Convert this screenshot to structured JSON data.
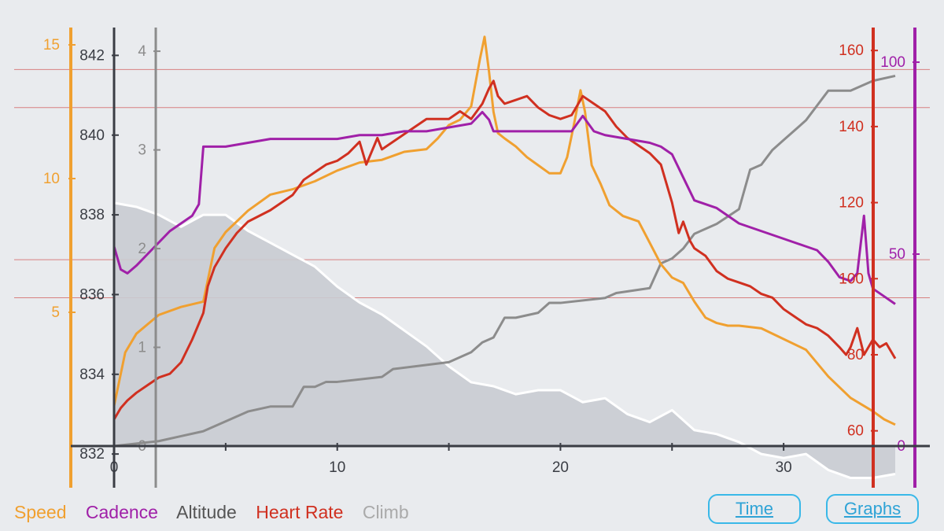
{
  "legend": {
    "speed": "Speed",
    "cadence": "Cadence",
    "altitude": "Altitude",
    "heart_rate": "Heart Rate",
    "climb": "Climb"
  },
  "buttons": {
    "time": "Time",
    "graphs": "Graphs"
  },
  "colors": {
    "speed": "#f0a030",
    "cadence": "#a020a8",
    "altitude": "#ffffff",
    "heart_rate": "#d03020",
    "climb": "#8c8c8c",
    "axis_dark": "#3a3d44",
    "button": "#39b8e8",
    "legend_altitude": "#555555",
    "legend_climb": "#aaaaaa"
  },
  "chart_data": {
    "type": "line",
    "title": "",
    "xlabel": "",
    "x_range": [
      0,
      35
    ],
    "x_ticks": [
      0,
      10,
      20,
      30
    ],
    "x_minor_ticks": [
      5,
      15,
      25
    ],
    "zones": [
      95,
      105,
      145,
      155
    ],
    "axes": {
      "speed": {
        "range": [
          0,
          15.5
        ],
        "ticks": [
          5,
          10,
          15
        ]
      },
      "altitude": {
        "range": [
          832.2,
          842.6
        ],
        "ticks": [
          832,
          834,
          836,
          838,
          840,
          842
        ]
      },
      "climb": {
        "range": [
          0,
          4.2
        ],
        "ticks": [
          0,
          1,
          2,
          3,
          4
        ]
      },
      "heart_rate": {
        "range": [
          56,
          165
        ],
        "ticks": [
          60,
          80,
          100,
          120,
          140,
          160
        ]
      },
      "cadence": {
        "range": [
          0,
          108
        ],
        "ticks": [
          0,
          50,
          100
        ]
      }
    },
    "series": [
      {
        "name": "Altitude",
        "axis": "altitude",
        "x": [
          0,
          1,
          2,
          3,
          4,
          5,
          6,
          7,
          8,
          9,
          10,
          11,
          12,
          13,
          14,
          15,
          16,
          17,
          18,
          19,
          20,
          21,
          22,
          23,
          24,
          25,
          26,
          27,
          28,
          29,
          30,
          31,
          32,
          33,
          34,
          35
        ],
        "values": [
          838.3,
          838.2,
          838.0,
          837.7,
          838.0,
          838.0,
          837.6,
          837.3,
          837.0,
          836.7,
          836.2,
          835.8,
          835.5,
          835.1,
          834.7,
          834.2,
          833.8,
          833.7,
          833.5,
          833.6,
          833.6,
          833.3,
          833.4,
          833.0,
          832.8,
          833.1,
          832.6,
          832.5,
          832.3,
          832.0,
          831.9,
          832.0,
          831.6,
          831.4,
          831.4,
          831.5
        ]
      },
      {
        "name": "Climb",
        "axis": "climb",
        "x": [
          0,
          2,
          3,
          4,
          5,
          6,
          7,
          8,
          8.5,
          9,
          9.5,
          10,
          12,
          12.5,
          15,
          16,
          16.5,
          17,
          17.5,
          18,
          19,
          19.5,
          20,
          22,
          22.5,
          24,
          24.5,
          25,
          25.5,
          26,
          27,
          28,
          28.5,
          29,
          29.5,
          30,
          30.5,
          31,
          32,
          33,
          34,
          35
        ],
        "values": [
          0,
          0.05,
          0.1,
          0.15,
          0.25,
          0.35,
          0.4,
          0.4,
          0.6,
          0.6,
          0.65,
          0.65,
          0.7,
          0.78,
          0.85,
          0.95,
          1.05,
          1.1,
          1.3,
          1.3,
          1.35,
          1.45,
          1.45,
          1.5,
          1.55,
          1.6,
          1.85,
          1.9,
          2.0,
          2.15,
          2.25,
          2.4,
          2.8,
          2.85,
          3.0,
          3.1,
          3.2,
          3.3,
          3.6,
          3.6,
          3.7,
          3.75
        ]
      },
      {
        "name": "Speed",
        "axis": "speed",
        "x": [
          0,
          0.5,
          1,
          2,
          3,
          4,
          4.5,
          5,
          6,
          7,
          8,
          9,
          10,
          11,
          12,
          13,
          14,
          14.5,
          15,
          15.5,
          16,
          16.4,
          16.6,
          16.8,
          17,
          17.2,
          17.5,
          18,
          18.5,
          19,
          19.5,
          20,
          20.3,
          20.6,
          20.9,
          21.1,
          21.4,
          21.8,
          22.2,
          22.8,
          23.5,
          24,
          24.5,
          25,
          25.5,
          26,
          26.5,
          27,
          27.5,
          28,
          29,
          30,
          31,
          32,
          33,
          34,
          34.5,
          35
        ],
        "values": [
          1.5,
          3.5,
          4.2,
          4.9,
          5.2,
          5.4,
          7.4,
          8.0,
          8.8,
          9.4,
          9.6,
          9.9,
          10.3,
          10.6,
          10.7,
          11.0,
          11.1,
          11.5,
          12.0,
          12.2,
          12.7,
          14.5,
          15.3,
          14.0,
          12.5,
          11.7,
          11.5,
          11.2,
          10.8,
          10.5,
          10.2,
          10.2,
          10.8,
          12.0,
          13.3,
          12.5,
          10.5,
          9.8,
          9.0,
          8.6,
          8.4,
          7.6,
          6.8,
          6.3,
          6.1,
          5.4,
          4.8,
          4.6,
          4.5,
          4.5,
          4.4,
          4.0,
          3.6,
          2.6,
          1.8,
          1.3,
          1.0,
          0.8
        ]
      },
      {
        "name": "Heart Rate",
        "axis": "heart_rate",
        "x": [
          0,
          0.3,
          0.6,
          1,
          1.5,
          2,
          2.5,
          3,
          3.5,
          4,
          4.2,
          4.5,
          5,
          5.5,
          6,
          7,
          8,
          8.5,
          9,
          9.5,
          10,
          10.5,
          11,
          11.3,
          11.8,
          12,
          13,
          14,
          15,
          15.5,
          16,
          16.5,
          16.8,
          17,
          17.2,
          17.5,
          18,
          18.5,
          19,
          19.5,
          20,
          20.5,
          21,
          21.5,
          22,
          22.5,
          23,
          23.5,
          24,
          24.5,
          25,
          25.3,
          25.5,
          25.8,
          26,
          26.5,
          27,
          27.5,
          28,
          28.5,
          29,
          29.5,
          30,
          30.5,
          31,
          31.5,
          32,
          32.5,
          32.8,
          33,
          33.3,
          33.6,
          34,
          34.3,
          34.6,
          35
        ],
        "values": [
          63,
          66,
          68,
          70,
          72,
          74,
          75,
          78,
          84,
          91,
          98,
          103,
          108,
          112,
          115,
          118,
          122,
          126,
          128,
          130,
          131,
          133,
          136,
          130,
          137,
          134,
          138,
          142,
          142,
          144,
          142,
          146,
          150,
          152,
          148,
          146,
          147,
          148,
          145,
          143,
          142,
          143,
          148,
          146,
          144,
          140,
          137,
          135,
          133,
          130,
          120,
          112,
          115,
          110,
          108,
          106,
          102,
          100,
          99,
          98,
          96,
          95,
          92,
          90,
          88,
          87,
          85,
          82,
          80,
          82,
          87,
          80,
          84,
          82,
          83,
          79
        ]
      },
      {
        "name": "Cadence",
        "axis": "cadence",
        "x": [
          0,
          0.3,
          0.6,
          1,
          1.5,
          2,
          2.5,
          3,
          3.5,
          3.8,
          4,
          4.5,
          5,
          6,
          7,
          8,
          9,
          10,
          11,
          12,
          13,
          14,
          15,
          16,
          16.5,
          16.8,
          17,
          17.5,
          18,
          19,
          20,
          20.5,
          21,
          21.5,
          22,
          23,
          24,
          24.5,
          25,
          25.5,
          26,
          26.5,
          27,
          28,
          28.5,
          29,
          30,
          31,
          31.5,
          32,
          32.5,
          33,
          33.3,
          33.6,
          33.8,
          34,
          34.5,
          35
        ],
        "values": [
          52,
          46,
          45,
          47,
          50,
          53,
          56,
          58,
          60,
          63,
          78,
          78,
          78,
          79,
          80,
          80,
          80,
          80,
          81,
          81,
          82,
          82,
          83,
          84,
          87,
          85,
          82,
          82,
          82,
          82,
          82,
          82,
          86,
          82,
          81,
          80,
          79,
          78,
          76,
          70,
          64,
          63,
          62,
          58,
          57,
          56,
          54,
          52,
          51,
          48,
          44,
          43,
          45,
          60,
          45,
          41,
          39,
          37
        ]
      }
    ]
  }
}
